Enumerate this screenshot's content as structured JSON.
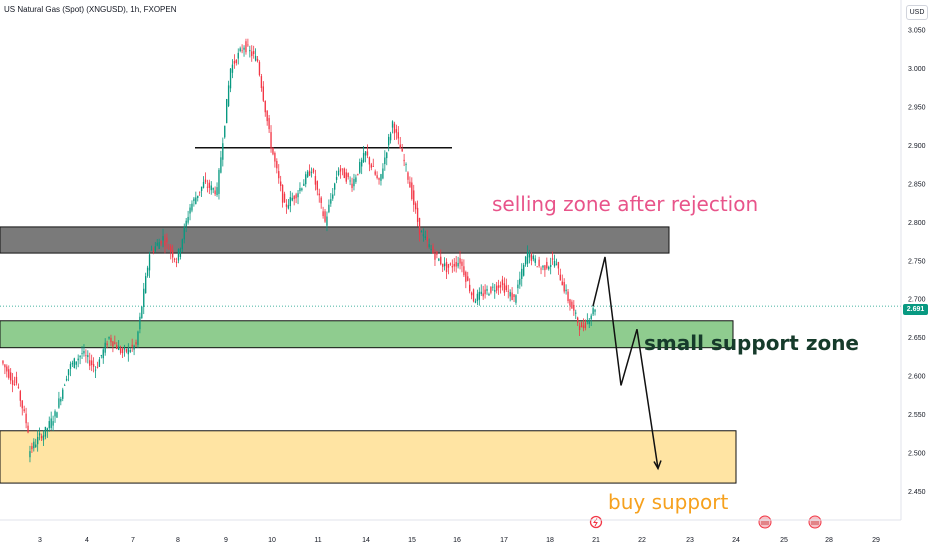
{
  "header": {
    "symbol_title": "US Natural Gas (Spot) (XNGUSD), 1h, FXOPEN",
    "currency": "USD",
    "last_price": "2.691"
  },
  "chart_data": {
    "type": "candlestick",
    "title": "US Natural Gas (Spot) (XNGUSD), 1h, FXOPEN",
    "y_ticks": [
      3.05,
      3.0,
      2.95,
      2.9,
      2.85,
      2.8,
      2.75,
      2.7,
      2.65,
      2.6,
      2.55,
      2.5,
      2.45
    ],
    "y_tick_labels": [
      "3.050",
      "3.000",
      "2.950",
      "2.900",
      "2.850",
      "2.800",
      "2.750",
      "2.700",
      "2.650",
      "2.600",
      "2.550",
      "2.500",
      "2.450"
    ],
    "x_tick_labels": [
      "3",
      "4",
      "7",
      "8",
      "9",
      "10",
      "11",
      "14",
      "15",
      "16",
      "17",
      "18",
      "21",
      "22",
      "23",
      "24",
      "25",
      "28",
      "29"
    ],
    "last_price": 2.691,
    "anchors": [
      [
        2.62,
        2.59
      ],
      [
        2.6,
        2.53
      ],
      [
        2.5,
        2.525
      ],
      [
        2.52,
        2.55
      ],
      [
        2.55,
        2.61
      ],
      [
        2.61,
        2.63
      ],
      [
        2.63,
        2.61
      ],
      [
        2.61,
        2.65
      ],
      [
        2.65,
        2.63
      ],
      [
        2.63,
        2.64
      ],
      [
        2.64,
        2.76
      ],
      [
        2.76,
        2.78
      ],
      [
        2.78,
        2.75
      ],
      [
        2.75,
        2.82
      ],
      [
        2.82,
        2.85
      ],
      [
        2.85,
        2.84
      ],
      [
        2.84,
        3.0
      ],
      [
        3.0,
        3.03
      ],
      [
        3.03,
        3.01
      ],
      [
        3.01,
        2.9
      ],
      [
        2.9,
        2.82
      ],
      [
        2.82,
        2.84
      ],
      [
        2.84,
        2.87
      ],
      [
        2.87,
        2.8
      ],
      [
        2.8,
        2.87
      ],
      [
        2.87,
        2.85
      ],
      [
        2.85,
        2.89
      ],
      [
        2.89,
        2.85
      ],
      [
        2.85,
        2.93
      ],
      [
        2.93,
        2.87
      ],
      [
        2.87,
        2.79
      ],
      [
        2.79,
        2.76
      ],
      [
        2.76,
        2.74
      ],
      [
        2.74,
        2.75
      ],
      [
        2.75,
        2.7
      ],
      [
        2.7,
        2.71
      ],
      [
        2.71,
        2.72
      ],
      [
        2.72,
        2.7
      ],
      [
        2.7,
        2.76
      ],
      [
        2.76,
        2.74
      ],
      [
        2.74,
        2.75
      ],
      [
        2.75,
        2.7
      ],
      [
        2.7,
        2.66
      ],
      [
        2.66,
        2.69
      ]
    ],
    "horizontal_line": {
      "price": 2.897
    },
    "zones": [
      {
        "name": "selling zone after rejection",
        "top": 2.794,
        "bottom": 2.76,
        "color": "#7a7a7a"
      },
      {
        "name": "small support zone",
        "top": 2.672,
        "bottom": 2.637,
        "color": "#8fcc8f"
      },
      {
        "name": "buy support",
        "top": 2.529,
        "bottom": 2.461,
        "color": "#ffe4a3"
      }
    ],
    "projection": [
      [
        2.691,
        2.755
      ],
      [
        2.755,
        2.588
      ],
      [
        2.588,
        2.661
      ],
      [
        2.661,
        2.48
      ]
    ],
    "annotations": [
      {
        "text": "selling zone after rejection",
        "color": "#e8548a"
      },
      {
        "text": "small support zone",
        "color": "#163b2b"
      },
      {
        "text": "buy support",
        "color": "#f6a11d"
      }
    ],
    "grid": false
  }
}
